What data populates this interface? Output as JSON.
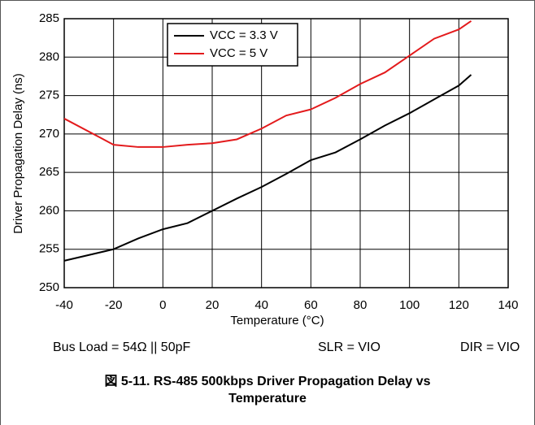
{
  "chart_data": {
    "type": "line",
    "xlabel": "Temperature (°C)",
    "ylabel": "Driver Propagation Delay (ns)",
    "x": [
      -40,
      -20,
      -10,
      0,
      10,
      20,
      30,
      40,
      50,
      60,
      70,
      80,
      90,
      100,
      110,
      120,
      125
    ],
    "series": [
      {
        "name": "VCC = 3.3 V",
        "color": "#000000",
        "values": [
          253.5,
          255,
          256.4,
          257.6,
          258.4,
          260,
          261.6,
          263.1,
          264.8,
          266.6,
          267.6,
          269.3,
          271.1,
          272.7,
          274.5,
          276.3,
          277.7
        ]
      },
      {
        "name": "VCC = 5 V",
        "color": "#e31a1c",
        "values": [
          272,
          268.6,
          268.3,
          268.3,
          268.6,
          268.8,
          269.3,
          270.7,
          272.4,
          273.2,
          274.7,
          276.5,
          278,
          280.2,
          282.4,
          283.6,
          284.7
        ]
      }
    ],
    "xlim": [
      -40,
      140
    ],
    "xticks": [
      -40,
      -20,
      0,
      20,
      40,
      60,
      80,
      100,
      120,
      140
    ],
    "ylim": [
      250,
      285
    ],
    "yticks": [
      250,
      255,
      260,
      265,
      270,
      275,
      280,
      285
    ],
    "grid": true,
    "legend": "top-center",
    "annotations": [
      "Bus Load = 54Ω || 50pF",
      "SLR = VIO",
      "DIR = VIO"
    ],
    "caption": "図 5-11. RS-485 500kbps Driver Propagation Delay vs Temperature"
  }
}
